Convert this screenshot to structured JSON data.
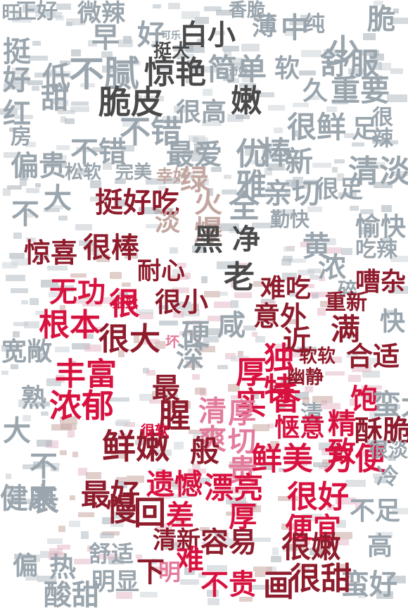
{
  "palette": {
    "grey": "#9aa5ad",
    "dark": "#4a4a4a",
    "darkred": "#8e1c2c",
    "red": "#d8123f",
    "pink": "#e37b9c",
    "tan": "#c2a6a0"
  },
  "words": [
    {
      "text": "正好",
      "c": "grey"
    },
    {
      "text": "微辣",
      "c": "grey"
    },
    {
      "text": "香脆",
      "c": "grey"
    },
    {
      "text": "少",
      "c": "grey"
    },
    {
      "text": "脆",
      "c": "grey"
    },
    {
      "text": "旺",
      "c": "grey"
    },
    {
      "text": "好",
      "c": "grey"
    },
    {
      "text": "早",
      "c": "grey"
    },
    {
      "text": "白小",
      "c": "dark"
    },
    {
      "text": "薄",
      "c": "grey"
    },
    {
      "text": "中",
      "c": "grey"
    },
    {
      "text": "纯",
      "c": "grey"
    },
    {
      "text": "挺大",
      "c": "dark"
    },
    {
      "text": "挺好",
      "c": "grey"
    },
    {
      "text": "低",
      "c": "grey"
    },
    {
      "text": "惊艳",
      "c": "dark"
    },
    {
      "text": "简单",
      "c": "grey"
    },
    {
      "text": "软",
      "c": "grey"
    },
    {
      "text": "舒服",
      "c": "grey"
    },
    {
      "text": "不腻",
      "c": "grey"
    },
    {
      "text": "甜",
      "c": "grey"
    },
    {
      "text": "脆皮",
      "c": "dark"
    },
    {
      "text": "嫩",
      "c": "dark"
    },
    {
      "text": "久",
      "c": "grey"
    },
    {
      "text": "重要",
      "c": "grey"
    },
    {
      "text": "红",
      "c": "grey"
    },
    {
      "text": "很高",
      "c": "grey"
    },
    {
      "text": "不错",
      "c": "grey"
    },
    {
      "text": "很鲜",
      "c": "grey"
    },
    {
      "text": "足",
      "c": "grey"
    },
    {
      "text": "很辣",
      "c": "grey"
    },
    {
      "text": "房",
      "c": "grey"
    },
    {
      "text": "偏贵",
      "c": "grey"
    },
    {
      "text": "不错",
      "c": "grey"
    },
    {
      "text": "最爱",
      "c": "grey"
    },
    {
      "text": "优雅",
      "c": "grey"
    },
    {
      "text": "棒",
      "c": "grey"
    },
    {
      "text": "新",
      "c": "grey"
    },
    {
      "text": "清淡",
      "c": "grey"
    },
    {
      "text": "松软",
      "c": "grey"
    },
    {
      "text": "完美",
      "c": "grey"
    },
    {
      "text": "幸好",
      "c": "tan"
    },
    {
      "text": "绿",
      "c": "tan"
    },
    {
      "text": "亲切",
      "c": "grey"
    },
    {
      "text": "很足",
      "c": "grey"
    },
    {
      "text": "挺好吃",
      "c": "darkred"
    },
    {
      "text": "火爆",
      "c": "tan"
    },
    {
      "text": "全",
      "c": "grey"
    },
    {
      "text": "勤快",
      "c": "grey"
    },
    {
      "text": "愉快",
      "c": "grey"
    },
    {
      "text": "大",
      "c": "grey"
    },
    {
      "text": "不",
      "c": "grey"
    },
    {
      "text": "淡",
      "c": "tan"
    },
    {
      "text": "黑",
      "c": "dark"
    },
    {
      "text": "净",
      "c": "dark"
    },
    {
      "text": "黄",
      "c": "grey"
    },
    {
      "text": "浓",
      "c": "grey"
    },
    {
      "text": "吃辣",
      "c": "grey"
    },
    {
      "text": "惊喜",
      "c": "darkred"
    },
    {
      "text": "很棒",
      "c": "darkred"
    },
    {
      "text": "耐心",
      "c": "darkred"
    },
    {
      "text": "老",
      "c": "dark"
    },
    {
      "text": "难吃",
      "c": "darkred"
    },
    {
      "text": "碎",
      "c": "grey"
    },
    {
      "text": "嘈杂",
      "c": "darkred"
    },
    {
      "text": "无功",
      "c": "red"
    },
    {
      "text": "很",
      "c": "red"
    },
    {
      "text": "很小",
      "c": "darkred"
    },
    {
      "text": "意外",
      "c": "darkred"
    },
    {
      "text": "重新",
      "c": "darkred"
    },
    {
      "text": "根本",
      "c": "red"
    },
    {
      "text": "很大",
      "c": "darkred"
    },
    {
      "text": "硬",
      "c": "grey"
    },
    {
      "text": "咸",
      "c": "grey"
    },
    {
      "text": "满",
      "c": "darkred"
    },
    {
      "text": "快",
      "c": "grey"
    },
    {
      "text": "宽敞",
      "c": "grey"
    },
    {
      "text": "近",
      "c": "darkred"
    },
    {
      "text": "软软",
      "c": "darkred"
    },
    {
      "text": "丰富",
      "c": "red"
    },
    {
      "text": "深",
      "c": "grey"
    },
    {
      "text": "厚实",
      "c": "red"
    },
    {
      "text": "独特",
      "c": "red"
    },
    {
      "text": "合适",
      "c": "darkred"
    },
    {
      "text": "熟",
      "c": "grey"
    },
    {
      "text": "幽静",
      "c": "darkred"
    },
    {
      "text": "浓郁",
      "c": "red"
    },
    {
      "text": "最",
      "c": "darkred"
    },
    {
      "text": "香",
      "c": "red"
    },
    {
      "text": "清",
      "c": "grey"
    },
    {
      "text": "精致",
      "c": "red"
    },
    {
      "text": "饱",
      "c": "red"
    },
    {
      "text": "蛮大",
      "c": "grey"
    },
    {
      "text": "腥",
      "c": "darkred"
    },
    {
      "text": "清爽",
      "c": "pink"
    },
    {
      "text": "厚切",
      "c": "pink"
    },
    {
      "text": "惬意",
      "c": "red"
    },
    {
      "text": "酥脆",
      "c": "darkred"
    },
    {
      "text": "大",
      "c": "grey"
    },
    {
      "text": "鲜嫩",
      "c": "darkred"
    },
    {
      "text": "般",
      "c": "darkred"
    },
    {
      "text": "鲜美",
      "c": "red"
    },
    {
      "text": "方便",
      "c": "red"
    },
    {
      "text": "很淡",
      "c": "grey"
    },
    {
      "text": "不大",
      "c": "grey"
    },
    {
      "text": "贵",
      "c": "pink"
    },
    {
      "text": "冷",
      "c": "grey"
    },
    {
      "text": "健康",
      "c": "grey"
    },
    {
      "text": "遗憾",
      "c": "red"
    },
    {
      "text": "漂亮",
      "c": "red"
    },
    {
      "text": "很好",
      "c": "red"
    },
    {
      "text": "最好",
      "c": "darkred"
    },
    {
      "text": "不足",
      "c": "grey"
    },
    {
      "text": "长",
      "c": "grey"
    },
    {
      "text": "差",
      "c": "red"
    },
    {
      "text": "厚",
      "c": "red"
    },
    {
      "text": "便宜",
      "c": "red"
    },
    {
      "text": "慢",
      "c": "darkred"
    },
    {
      "text": "回",
      "c": "darkred"
    },
    {
      "text": "清新",
      "c": "darkred"
    },
    {
      "text": "高",
      "c": "grey"
    },
    {
      "text": "舒适",
      "c": "grey"
    },
    {
      "text": "容易",
      "c": "darkred"
    },
    {
      "text": "很嫩",
      "c": "darkred"
    },
    {
      "text": "偏",
      "c": "grey"
    },
    {
      "text": "热",
      "c": "grey"
    },
    {
      "text": "明显",
      "c": "grey"
    },
    {
      "text": "难",
      "c": "red"
    },
    {
      "text": "蛮好",
      "c": "grey"
    },
    {
      "text": "酸甜",
      "c": "grey"
    },
    {
      "text": "明",
      "c": "pink"
    },
    {
      "text": "不贵",
      "c": "red"
    },
    {
      "text": "画",
      "c": "darkred"
    },
    {
      "text": "很甜",
      "c": "darkred"
    },
    {
      "text": "下",
      "c": "darkred"
    },
    {
      "text": "可乐",
      "c": "grey"
    },
    {
      "text": "奇妙",
      "c": "grey"
    },
    {
      "text": "细致",
      "c": "red"
    },
    {
      "text": "坏",
      "c": "pink"
    },
    {
      "text": "很软",
      "c": "red"
    }
  ]
}
